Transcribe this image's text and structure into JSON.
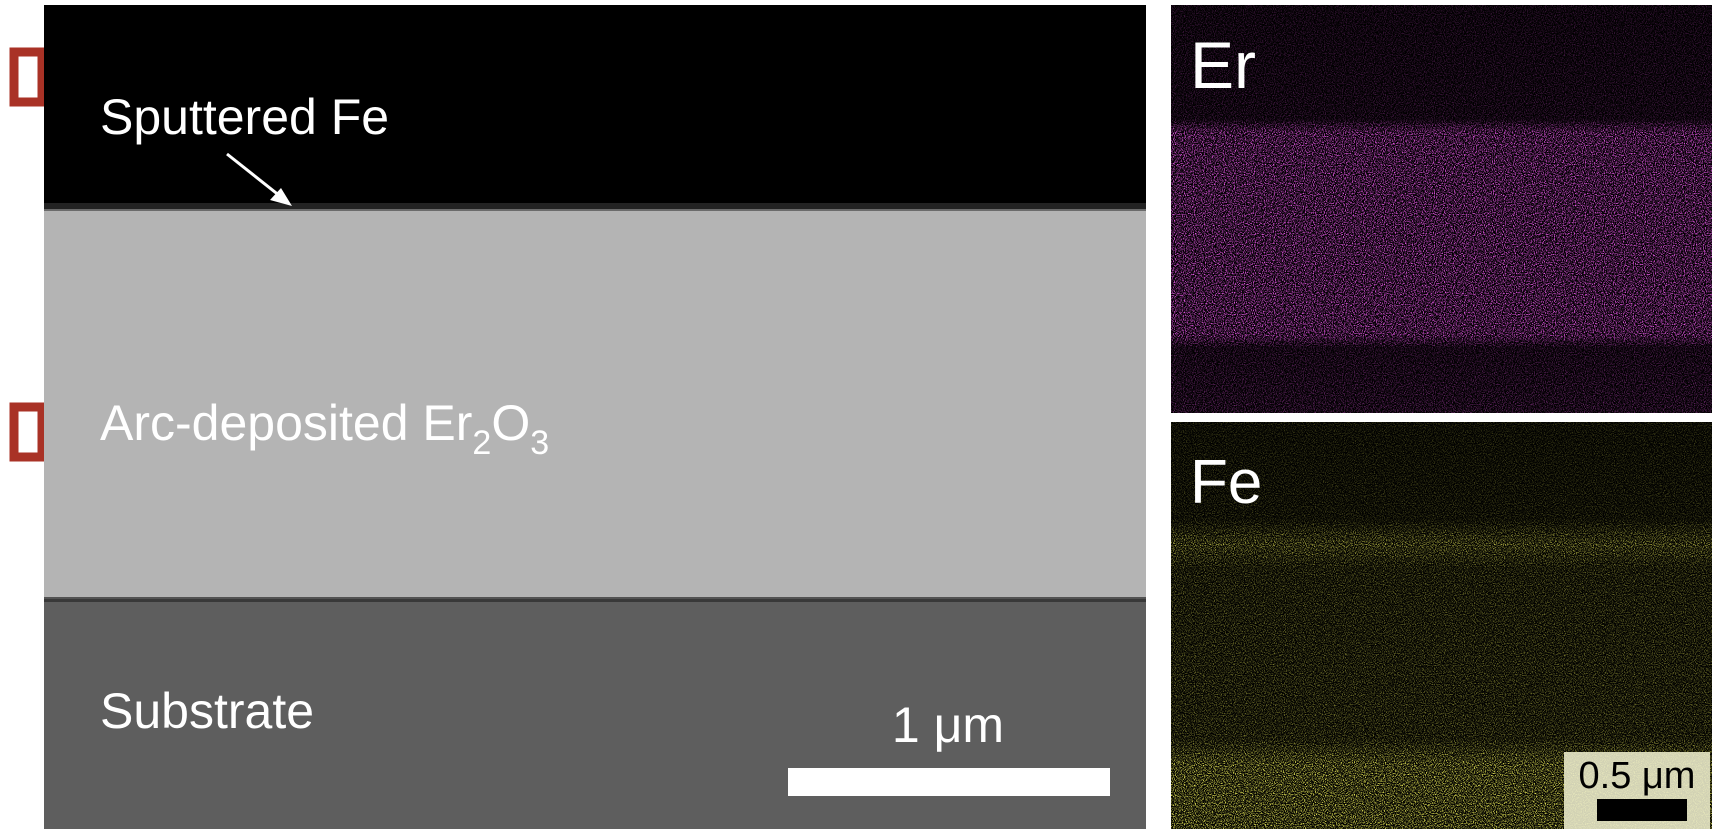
{
  "sem": {
    "layer_labels": {
      "top": "Sputtered Fe",
      "middle": {
        "text": "Arc-deposited Er",
        "sub1": "2",
        "mid": "O",
        "sub2": "3"
      },
      "bottom": "Substrate"
    },
    "scale_bar": "1 μm"
  },
  "maps": [
    {
      "label": "Er"
    },
    {
      "label": "Fe",
      "scale_bar": "0.5 μm"
    }
  ]
}
